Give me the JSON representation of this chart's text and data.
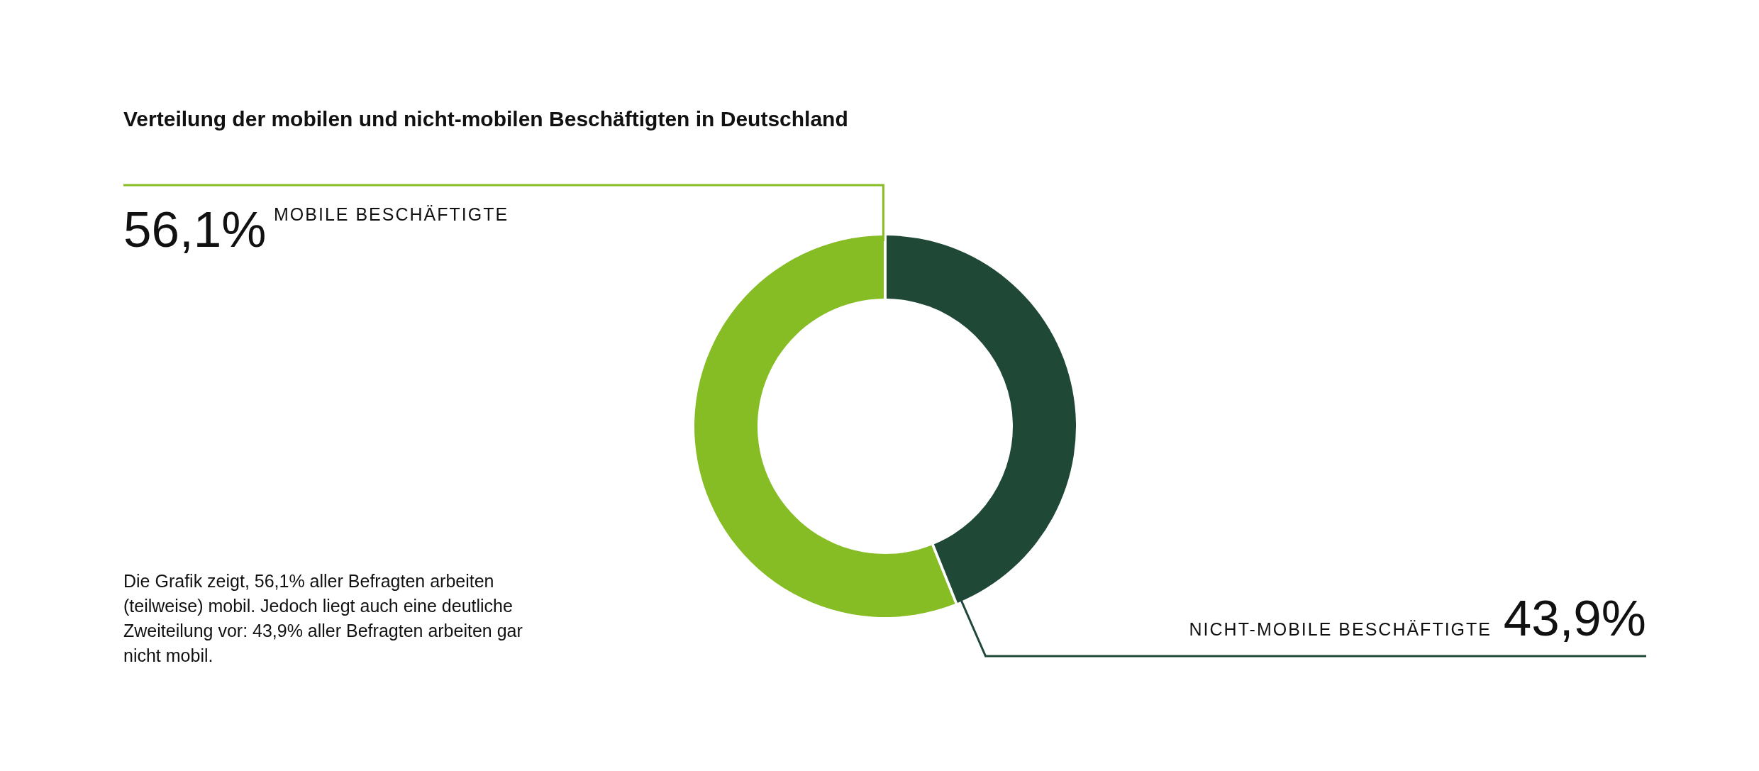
{
  "chart_data": {
    "type": "donut",
    "title": "Verteilung der mobilen und nicht-mobilen Beschäftigten in Deutschland",
    "categories": [
      "NICHT-MOBILE BESCHÄFTIGTE",
      "MOBILE BESCHÄFTIGTE"
    ],
    "values": [
      43.9,
      56.1
    ],
    "colors": [
      "#1f4837",
      "#86bc24"
    ],
    "value_labels": [
      "43,9%",
      "56,1%"
    ],
    "annotations": [
      "Die Grafik zeigt, 56,1% aller Befragten arbeiten (teilweise) mobil. Jedoch liegt auch eine deutliche Zweiteilung vor: 43,9% aller Befragten arbeiten gar nicht mobil."
    ]
  }
}
